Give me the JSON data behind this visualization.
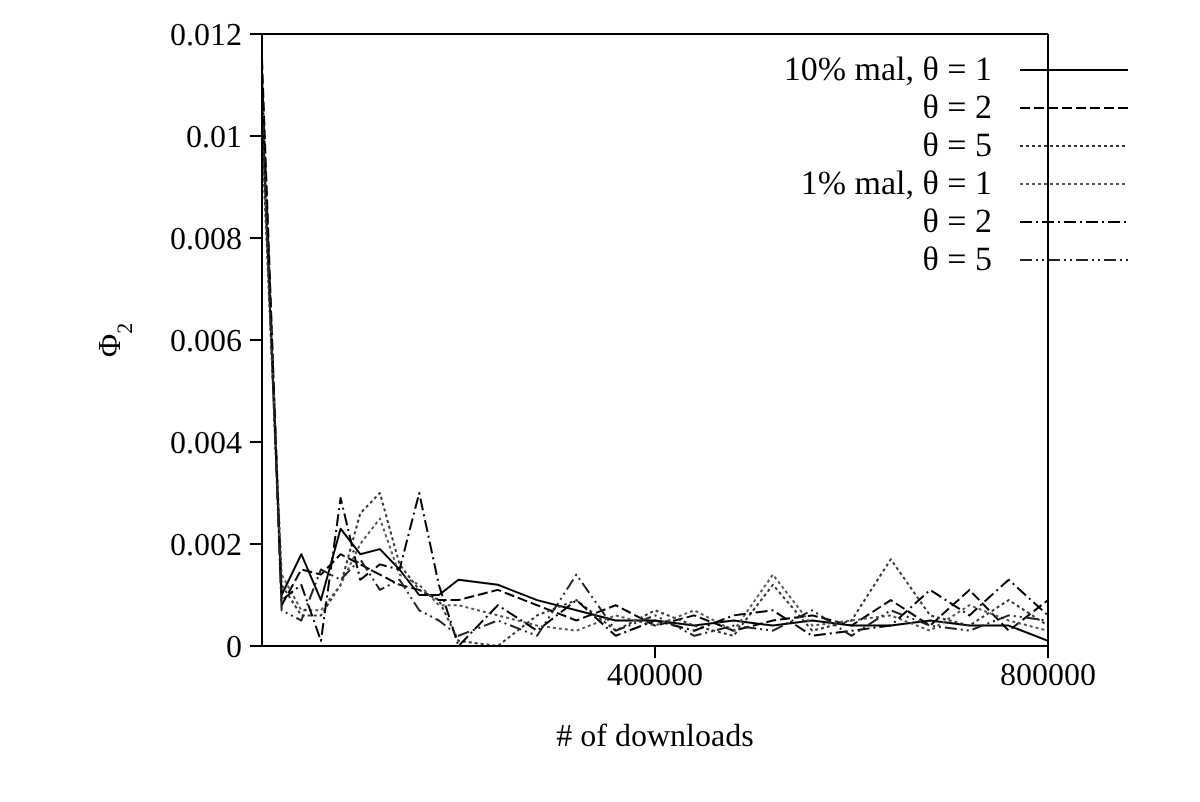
{
  "chart_data": {
    "type": "line",
    "xlabel": "# of downloads",
    "ylabel": "Φ$_{2}$",
    "xlim": [
      0,
      800000
    ],
    "xticks": [
      400000,
      800000
    ],
    "ylim": [
      0,
      0.012
    ],
    "yticks": [
      0,
      0.002,
      0.004,
      0.006,
      0.008,
      0.01,
      0.012
    ],
    "grid": false,
    "legend": "top right",
    "marker": "none",
    "x": [
      0,
      20000,
      40000,
      60000,
      80000,
      100000,
      120000,
      140000,
      160000,
      180000,
      200000,
      240000,
      280000,
      320000,
      360000,
      400000,
      440000,
      480000,
      520000,
      560000,
      600000,
      640000,
      680000,
      720000,
      760000,
      800000
    ],
    "series": [
      {
        "name": "10% mal, θ = 1",
        "color": "#000000",
        "line_style": "solid",
        "values": [
          0.0105,
          0.001,
          0.0018,
          0.0009,
          0.0023,
          0.0018,
          0.0019,
          0.0015,
          0.001,
          0.001,
          0.0013,
          0.0012,
          0.0009,
          0.0007,
          0.0005,
          0.0005,
          0.0004,
          0.0005,
          0.0004,
          0.0005,
          0.0004,
          0.0004,
          0.0005,
          0.0004,
          0.0004,
          0.0001
        ]
      },
      {
        "name": "θ = 2",
        "color": "#000000",
        "line_style": "dashed",
        "values": [
          0.0115,
          0.0008,
          0.0015,
          0.0014,
          0.0018,
          0.0016,
          0.0014,
          0.0012,
          0.0011,
          0.0009,
          0.0009,
          0.0011,
          0.0008,
          0.0005,
          0.0008,
          0.0004,
          0.0006,
          0.0003,
          0.0005,
          0.0006,
          0.0004,
          0.0009,
          0.0004,
          0.0011,
          0.0003,
          0.0009
        ]
      },
      {
        "name": "θ = 5",
        "color": "#333333",
        "line_style": "dotted",
        "values": [
          0.01,
          0.0012,
          0.0006,
          0.0006,
          0.0012,
          0.0026,
          0.003,
          0.0016,
          0.0011,
          0.0009,
          0.0001,
          0.0,
          0.0006,
          0.0009,
          0.0003,
          0.0007,
          0.0004,
          0.0002,
          0.0012,
          0.0003,
          0.0005,
          0.0017,
          0.0006,
          0.0004,
          0.0009,
          0.0004
        ]
      },
      {
        "name": "1% mal, θ = 1",
        "color": "#555555",
        "line_style": "dotted",
        "values": [
          0.0102,
          0.0014,
          0.0007,
          0.0007,
          0.0012,
          0.002,
          0.0025,
          0.0014,
          0.0012,
          0.0008,
          0.0008,
          0.0006,
          0.0004,
          0.0003,
          0.0006,
          0.0004,
          0.0007,
          0.0003,
          0.0014,
          0.0004,
          0.0005,
          0.0006,
          0.0003,
          0.0008,
          0.0005,
          0.0003
        ]
      },
      {
        "name": "θ = 2",
        "color": "#000000",
        "line_style": "dashdot",
        "values": [
          0.0112,
          0.0009,
          0.0012,
          0.0001,
          0.0029,
          0.0013,
          0.0016,
          0.0015,
          0.003,
          0.0012,
          0.0,
          0.0008,
          0.0003,
          0.0009,
          0.0002,
          0.0005,
          0.0003,
          0.0006,
          0.0007,
          0.0002,
          0.0003,
          0.0004,
          0.0011,
          0.0006,
          0.0013,
          0.0006
        ]
      },
      {
        "name": "θ = 5",
        "color": "#222222",
        "line_style": "dashdotdot",
        "values": [
          0.0108,
          0.0007,
          0.0005,
          0.0015,
          0.0013,
          0.0017,
          0.0011,
          0.0013,
          0.0007,
          0.0005,
          0.0002,
          0.0005,
          0.0002,
          0.0014,
          0.0003,
          0.0006,
          0.0002,
          0.0004,
          0.0003,
          0.0007,
          0.0002,
          0.0007,
          0.0004,
          0.0003,
          0.0006,
          0.0005
        ]
      }
    ]
  }
}
